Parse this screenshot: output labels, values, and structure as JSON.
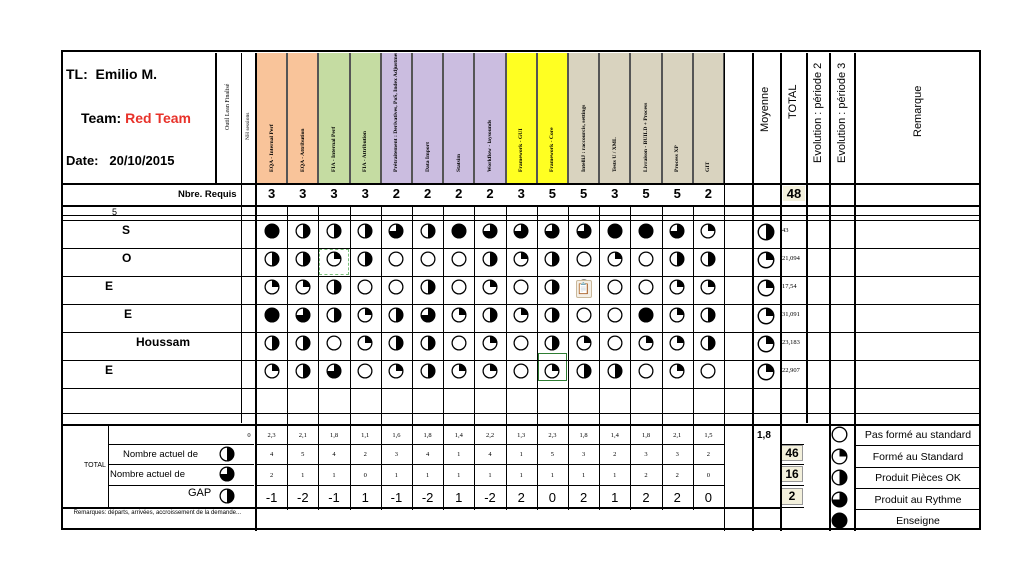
{
  "header": {
    "tl_label": "TL:",
    "tl_name": "Emilio M.",
    "team_label": "Team:",
    "team_name": "Red Team",
    "date_label": "Date:",
    "date_value": "20/10/2015",
    "outil_label": "Outil Lean Finalisé",
    "nh_label": "NH sessions"
  },
  "colors": {
    "orange": "#f9c49a",
    "green": "#c5dca2",
    "purple": "#cbbde0",
    "yellow": "#ffff22",
    "tan": "#d9d3bf",
    "red_team": "#e8322a",
    "box": "#f3f0dc"
  },
  "skills": [
    {
      "label": "EQA - Internal Perf",
      "color": "orange",
      "req": "3"
    },
    {
      "label": "EQA - Attribution",
      "color": "orange",
      "req": "3"
    },
    {
      "label": "FIA - Internal Perf",
      "color": "green",
      "req": "3"
    },
    {
      "label": "FIA - Attribution",
      "color": "green",
      "req": "3"
    },
    {
      "label": "Prétraitement : Derivatives, PoS, Index Adjustments",
      "color": "purple",
      "req": "2"
    },
    {
      "label": "Data Import",
      "color": "purple",
      "req": "2"
    },
    {
      "label": "Statsim",
      "color": "purple",
      "req": "2"
    },
    {
      "label": "Workflow - laysounds",
      "color": "purple",
      "req": "2"
    },
    {
      "label": "Framework - GUI",
      "color": "yellow",
      "req": "3"
    },
    {
      "label": "Framework - Core",
      "color": "yellow",
      "req": "5"
    },
    {
      "label": "IntelliJ : raccourcis, settings",
      "color": "tan",
      "req": "5"
    },
    {
      "label": "Tests U / XML",
      "color": "tan",
      "req": "3"
    },
    {
      "label": "Livraison - BUILD + Process",
      "color": "tan",
      "req": "5"
    },
    {
      "label": "Process XP",
      "color": "tan",
      "req": "5"
    },
    {
      "label": "GIT",
      "color": "tan",
      "req": "2"
    }
  ],
  "right_headers": {
    "moyenne": "Moyenne",
    "total": "TOTAL",
    "evo2": "Evolution : période 2",
    "evo3": "Evolution : période 3",
    "remarque": "Remarque"
  },
  "nbre_requis_label": "Nbre. Requis",
  "total_requis": "48",
  "five_mark": "5",
  "members": [
    {
      "name": "S",
      "levels": [
        4,
        2,
        2,
        2,
        3,
        2,
        4,
        3,
        3,
        3,
        3,
        4,
        4,
        3,
        1
      ],
      "avg": 2,
      "total": "43"
    },
    {
      "name": "O",
      "levels": [
        2,
        2,
        1,
        2,
        0,
        0,
        0,
        2,
        1,
        2,
        0,
        1,
        0,
        2,
        2
      ],
      "avg": 1,
      "total": "21,094"
    },
    {
      "name": "E",
      "levels": [
        1,
        1,
        2,
        0,
        0,
        2,
        0,
        1,
        0,
        2,
        0,
        0,
        0,
        1,
        1
      ],
      "avg": 1,
      "total": "17,54"
    },
    {
      "name": "E",
      "levels": [
        4,
        3,
        2,
        1,
        2,
        3,
        1,
        2,
        1,
        2,
        0,
        0,
        4,
        1,
        2
      ],
      "avg": 1,
      "total": "31,091"
    },
    {
      "name": "Houssam",
      "levels": [
        2,
        2,
        0,
        1,
        2,
        2,
        0,
        1,
        0,
        2,
        1,
        0,
        1,
        1,
        2
      ],
      "avg": 1,
      "total": "23,183"
    },
    {
      "name": "E",
      "levels": [
        1,
        2,
        3,
        0,
        1,
        2,
        1,
        1,
        0,
        1,
        2,
        2,
        0,
        1,
        0
      ],
      "avg": 1,
      "total": "22,907"
    }
  ],
  "averages": [
    "0",
    "2,3",
    "2,1",
    "1,8",
    "1,1",
    "1,6",
    "1,8",
    "1,4",
    "2,2",
    "1,3",
    "2,3",
    "1,8",
    "1,4",
    "1,8",
    "2,1",
    "1,5"
  ],
  "avg_total": "1,8",
  "totals_label": "TOTAL",
  "nombre_actuel_1": {
    "label": "Nombre actuel  de",
    "values": [
      "4",
      "5",
      "4",
      "2",
      "3",
      "4",
      "1",
      "4",
      "1",
      "5",
      "3",
      "2",
      "3",
      "3",
      "2"
    ],
    "total": "46"
  },
  "nombre_actuel_2": {
    "label": "Nombre actuel de",
    "values": [
      "2",
      "1",
      "1",
      "0",
      "1",
      "1",
      "1",
      "1",
      "1",
      "1",
      "1",
      "1",
      "2",
      "2",
      "0"
    ],
    "total": "16"
  },
  "gap": {
    "label": "GAP",
    "values": [
      "-1",
      "-2",
      "-1",
      "1",
      "-1",
      "-2",
      "1",
      "-2",
      "2",
      "0",
      "2",
      "1",
      "2",
      "2",
      "0"
    ],
    "total": "2"
  },
  "remarques_label": "Remarques: départs, arrivées, accroissement de la demande...",
  "legend": [
    {
      "level": 0,
      "label": "Pas formé au standard"
    },
    {
      "level": 1,
      "label": "Formé au Standard"
    },
    {
      "level": 2,
      "label": "Produit Pièces OK"
    },
    {
      "level": 3,
      "label": "Produit au Rythme"
    },
    {
      "level": 4,
      "label": "Enseigne"
    }
  ]
}
